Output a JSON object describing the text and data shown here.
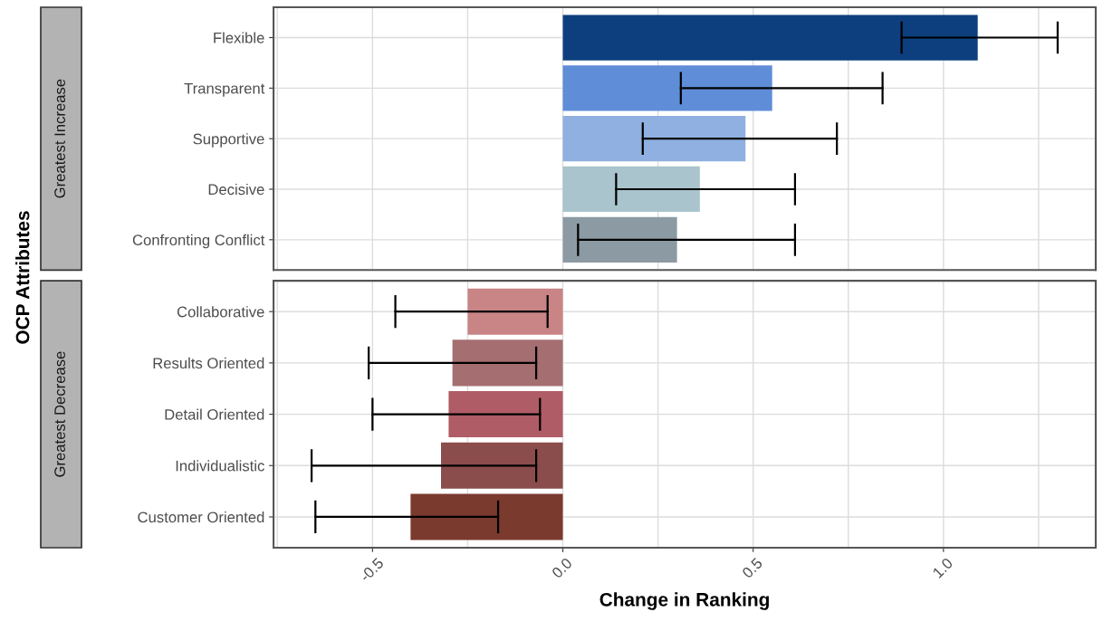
{
  "chart_data": [
    {
      "type": "bar",
      "orientation": "horizontal",
      "title": "Greatest Increase",
      "ylabel": "OCP Attributes",
      "categories": [
        "Flexible",
        "Transparent",
        "Supportive",
        "Decisive",
        "Confronting Conflict"
      ],
      "values": [
        1.09,
        0.55,
        0.48,
        0.36,
        0.3
      ],
      "colors": [
        "#0d3f7e",
        "#5f8dd8",
        "#8fb0e0",
        "#a9c4cc",
        "#8c9aa3"
      ],
      "errors": [
        [
          0.89,
          1.3
        ],
        [
          0.31,
          0.84
        ],
        [
          0.21,
          0.72
        ],
        [
          0.14,
          0.61
        ],
        [
          0.04,
          0.61
        ]
      ],
      "xlim": [
        -0.76,
        1.4
      ],
      "xticks": [
        -0.5,
        0,
        0.5,
        1
      ],
      "grid": true,
      "tick_labels": "y"
    },
    {
      "type": "bar",
      "orientation": "horizontal",
      "title": "Greatest Decrease",
      "xlabel": "Change in Ranking",
      "categories": [
        "Collaborative",
        "Results Oriented",
        "Detail Oriented",
        "Individualistic",
        "Customer Oriented"
      ],
      "values": [
        -0.25,
        -0.29,
        -0.3,
        -0.32,
        -0.4
      ],
      "colors": [
        "#c98486",
        "#a56e71",
        "#b05c66",
        "#8b4c4c",
        "#7a3a2e"
      ],
      "errors": [
        [
          -0.44,
          -0.04
        ],
        [
          -0.51,
          -0.07
        ],
        [
          -0.5,
          -0.06
        ],
        [
          -0.66,
          -0.07
        ],
        [
          -0.65,
          -0.17
        ]
      ],
      "xlim": [
        -0.76,
        1.4
      ],
      "xticks": [
        {
          "value": -0.5,
          "label": "-0.5"
        },
        {
          "value": 0,
          "label": "0.0"
        },
        {
          "value": 0.5,
          "label": "0.5"
        },
        {
          "value": 1,
          "label": "1.0"
        }
      ],
      "grid": true
    }
  ]
}
